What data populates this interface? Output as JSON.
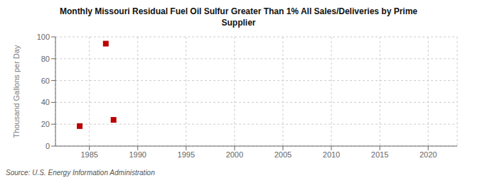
{
  "chart_data": {
    "type": "scatter",
    "title": "Monthly Missouri Residual Fuel Oil Sulfur Greater Than 1% All Sales/Deliveries by Prime\nSupplier",
    "y_label": "Thousand Gallons per Day",
    "source": "Source: U.S. Energy Information Administration",
    "x": [
      1984.0,
      1986.7,
      1987.5
    ],
    "values": [
      18.3,
      93.8,
      24.0
    ],
    "color": "#bb0000",
    "marker": "square",
    "xlim": [
      1981.5,
      2023
    ],
    "ylim": [
      0,
      100
    ],
    "xticks": [
      1985,
      1990,
      1995,
      2000,
      2005,
      2010,
      2015,
      2020
    ],
    "yticks": [
      0,
      20,
      40,
      60,
      80,
      100
    ],
    "grid": true
  }
}
